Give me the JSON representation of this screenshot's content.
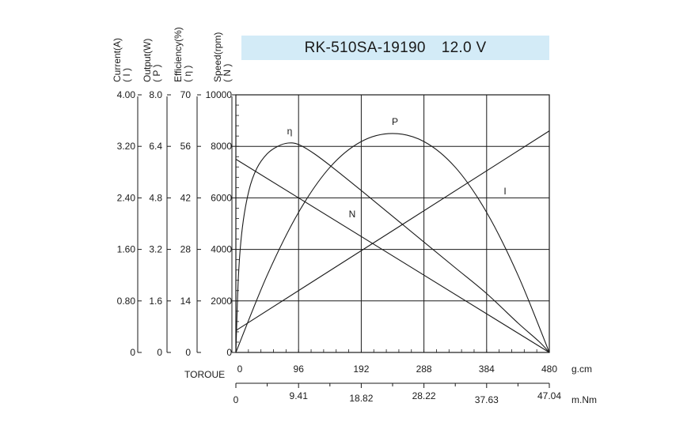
{
  "chart_data": {
    "type": "line",
    "title": "RK-510SA-19190",
    "voltage": "12.0 V",
    "x_torque_gcm": {
      "label": "TOROUE",
      "unit": "g.cm",
      "ticks": [
        "0",
        "96",
        "192",
        "288",
        "384",
        "480"
      ],
      "range": [
        0,
        480
      ]
    },
    "x_torque_mNm": {
      "unit": "m.Nm",
      "ticks": [
        "0",
        "9.41",
        "18.82",
        "28.22",
        "37.63",
        "47.04"
      ]
    },
    "y_axes": [
      {
        "key": "current",
        "title_line1": "Current(A)",
        "title_line2": "( I )",
        "ticks": [
          "0",
          "0.80",
          "1.60",
          "2.40",
          "3.20",
          "4.00"
        ],
        "range": [
          0,
          4.0
        ]
      },
      {
        "key": "output",
        "title_line1": "Output(W)",
        "title_line2": "( P )",
        "ticks": [
          "0",
          "1.6",
          "3.2",
          "4.8",
          "6.4",
          "8.0"
        ],
        "range": [
          0,
          8.0
        ]
      },
      {
        "key": "efficiency",
        "title_line1": "Efficiency(%)",
        "title_line2": "( η )",
        "ticks": [
          "0",
          "14",
          "28",
          "42",
          "56",
          "70"
        ],
        "range": [
          0,
          70
        ]
      },
      {
        "key": "speed",
        "title_line1": "Speed(rpm)",
        "title_line2": "( N )",
        "ticks": [
          "0",
          "2000",
          "4000",
          "6000",
          "8000",
          "10000"
        ],
        "range": [
          0,
          10000
        ]
      }
    ],
    "grid": true,
    "series": [
      {
        "name": "N",
        "axis": "speed",
        "x": [
          0,
          96,
          192,
          288,
          384,
          480
        ],
        "y": [
          7500,
          6000,
          4500,
          3000,
          1500,
          0
        ]
      },
      {
        "name": "I",
        "axis": "current",
        "x": [
          0,
          96,
          192,
          288,
          384,
          480
        ],
        "y": [
          0.34,
          0.96,
          1.58,
          2.2,
          2.82,
          3.44
        ]
      },
      {
        "name": "P",
        "axis": "output",
        "x": [
          0,
          48,
          96,
          144,
          192,
          240,
          288,
          336,
          384,
          432,
          480
        ],
        "y": [
          0,
          2.4,
          4.35,
          5.75,
          6.55,
          6.8,
          6.55,
          5.75,
          4.35,
          2.4,
          0
        ]
      },
      {
        "name": "η",
        "axis": "efficiency",
        "x": [
          0,
          4,
          10,
          20,
          32,
          48,
          64,
          80,
          96,
          120,
          150,
          192,
          240,
          288,
          336,
          384,
          432,
          464,
          480
        ],
        "y": [
          0,
          21,
          34,
          44,
          50,
          54,
          56,
          56.9,
          56.5,
          54,
          50,
          44,
          37,
          30,
          23,
          16,
          8,
          3,
          0
        ]
      }
    ]
  }
}
